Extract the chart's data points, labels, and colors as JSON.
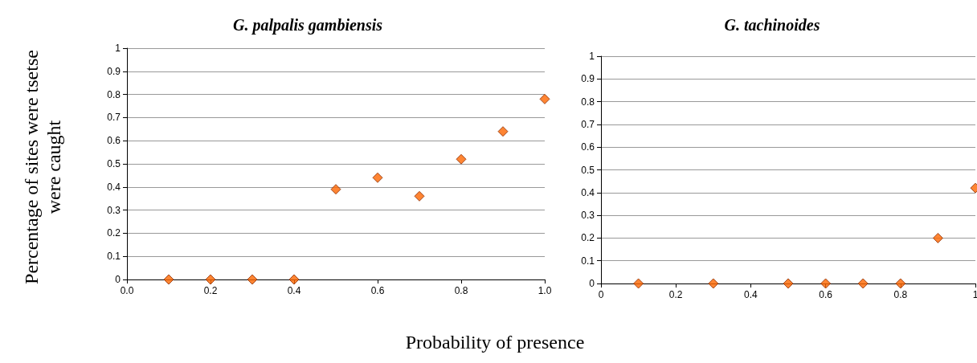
{
  "chart_data": [
    {
      "type": "scatter",
      "title": "G. palpalis gambiensis",
      "ylabel": "Percentage of sites were tsetse were caught",
      "xlabel": "Probability of presence",
      "x": [
        0.1,
        0.2,
        0.3,
        0.4,
        0.5,
        0.6,
        0.7,
        0.8,
        0.9,
        1.0
      ],
      "values": [
        0,
        0,
        0,
        0,
        0.39,
        0.44,
        0.36,
        0.52,
        0.64,
        0.78
      ],
      "color": "#ff6600",
      "marker": "diamond",
      "xlim": [
        0,
        1
      ],
      "xticks": [
        {
          "value": 0,
          "label": "0.0"
        },
        {
          "value": 0.2,
          "label": "0.2"
        },
        {
          "value": 0.4,
          "label": "0.4"
        },
        {
          "value": 0.6,
          "label": "0.6"
        },
        {
          "value": 0.8,
          "label": "0.8"
        },
        {
          "value": 1,
          "label": "1.0"
        }
      ],
      "ylim": [
        0,
        1
      ],
      "yticks": [
        0,
        0.1,
        0.2,
        0.3,
        0.4,
        0.5,
        0.6,
        0.7,
        0.8,
        0.9,
        1
      ],
      "grid": "y"
    },
    {
      "type": "scatter",
      "title": "G. tachinoides",
      "x": [
        0.1,
        0.3,
        0.5,
        0.6,
        0.7,
        0.8,
        0.9,
        1.0
      ],
      "values": [
        0,
        0,
        0,
        0,
        0,
        0,
        0.2,
        0.42
      ],
      "color": "#ff6600",
      "marker": "diamond",
      "xlim": [
        0,
        1
      ],
      "xticks": [
        0,
        0.2,
        0.4,
        0.6,
        0.8,
        1
      ],
      "ylim": [
        0,
        1
      ],
      "yticks": [
        0,
        0.1,
        0.2,
        0.3,
        0.4,
        0.5,
        0.6,
        0.7,
        0.8,
        0.9,
        1
      ],
      "grid": "y"
    }
  ]
}
